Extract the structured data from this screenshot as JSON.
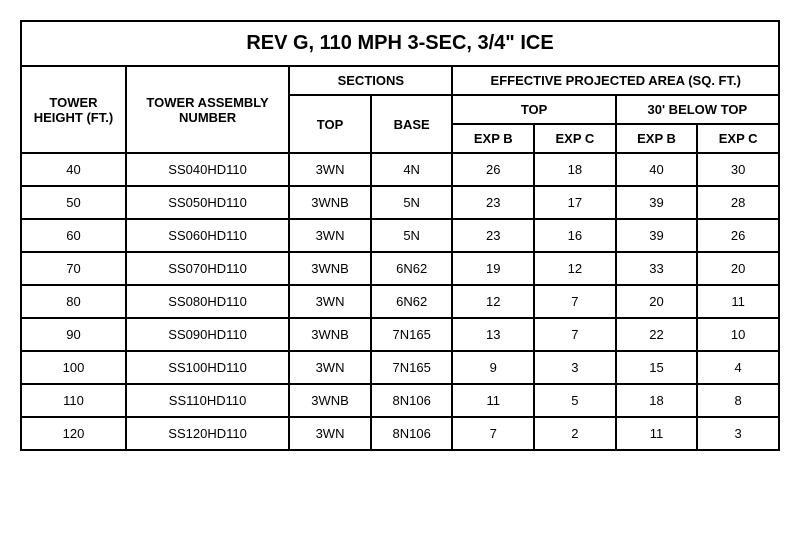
{
  "title": "REV G, 110 MPH 3-SEC, 3/4\" ICE",
  "headers": {
    "tower_height": "TOWER HEIGHT (FT.)",
    "tower_assembly": "TOWER ASSEMBLY NUMBER",
    "sections": "SECTIONS",
    "epa": "EFFECTIVE PROJECTED AREA (SQ. FT.)",
    "top": "TOP",
    "base": "BASE",
    "epa_top": "TOP",
    "epa_below": "30' BELOW TOP",
    "exp_b": "EXP B",
    "exp_c": "EXP C"
  },
  "rows": [
    {
      "height": "40",
      "assembly": "SS040HD110",
      "top": "3WN",
      "base": "4N",
      "top_b": "26",
      "top_c": "18",
      "below_b": "40",
      "below_c": "30"
    },
    {
      "height": "50",
      "assembly": "SS050HD110",
      "top": "3WNB",
      "base": "5N",
      "top_b": "23",
      "top_c": "17",
      "below_b": "39",
      "below_c": "28"
    },
    {
      "height": "60",
      "assembly": "SS060HD110",
      "top": "3WN",
      "base": "5N",
      "top_b": "23",
      "top_c": "16",
      "below_b": "39",
      "below_c": "26"
    },
    {
      "height": "70",
      "assembly": "SS070HD110",
      "top": "3WNB",
      "base": "6N62",
      "top_b": "19",
      "top_c": "12",
      "below_b": "33",
      "below_c": "20"
    },
    {
      "height": "80",
      "assembly": "SS080HD110",
      "top": "3WN",
      "base": "6N62",
      "top_b": "12",
      "top_c": "7",
      "below_b": "20",
      "below_c": "11"
    },
    {
      "height": "90",
      "assembly": "SS090HD110",
      "top": "3WNB",
      "base": "7N165",
      "top_b": "13",
      "top_c": "7",
      "below_b": "22",
      "below_c": "10"
    },
    {
      "height": "100",
      "assembly": "SS100HD110",
      "top": "3WN",
      "base": "7N165",
      "top_b": "9",
      "top_c": "3",
      "below_b": "15",
      "below_c": "4"
    },
    {
      "height": "110",
      "assembly": "SS110HD110",
      "top": "3WNB",
      "base": "8N106",
      "top_b": "11",
      "top_c": "5",
      "below_b": "18",
      "below_c": "8"
    },
    {
      "height": "120",
      "assembly": "SS120HD110",
      "top": "3WN",
      "base": "8N106",
      "top_b": "7",
      "top_c": "2",
      "below_b": "11",
      "below_c": "3"
    }
  ],
  "styling": {
    "border_color": "#000000",
    "background_color": "#ffffff",
    "title_fontsize": 20,
    "header_fontsize": 13,
    "data_fontsize": 13,
    "font_family": "Arial"
  }
}
